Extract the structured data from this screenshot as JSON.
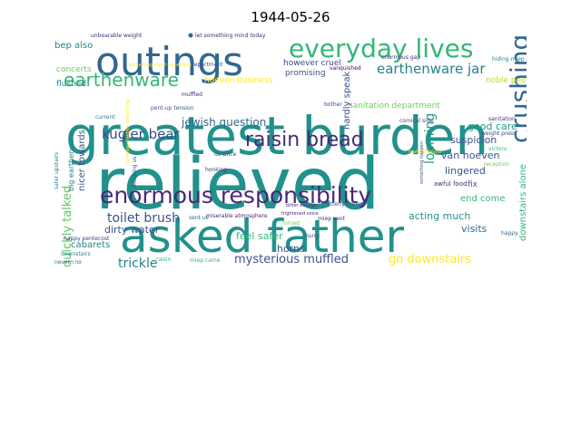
{
  "title": "1944-05-26",
  "chart_data": {
    "type": "wordcloud",
    "title": "1944-05-26",
    "words": [
      {
        "text": "relieved",
        "weight": 1.0,
        "color": "#21918c"
      },
      {
        "text": "greatest burden",
        "weight": 0.85,
        "color": "#21918c"
      },
      {
        "text": "asked father",
        "weight": 0.82,
        "color": "#21918c"
      },
      {
        "text": "outings",
        "weight": 0.68,
        "color": "#31688e"
      },
      {
        "text": "everyday lives",
        "weight": 0.46,
        "color": "#35b779"
      },
      {
        "text": "enormous responsibility",
        "weight": 0.44,
        "color": "#482878"
      },
      {
        "text": "crushing",
        "weight": 0.42,
        "color": "#31688e"
      },
      {
        "text": "raisin bread",
        "weight": 0.36,
        "color": "#482878"
      },
      {
        "text": "earthenware",
        "weight": 0.3,
        "color": "#35b779"
      },
      {
        "text": "earthenware jar",
        "weight": 0.24,
        "color": "#26828e"
      },
      {
        "text": "kugler bear",
        "weight": 0.22,
        "color": "#3e4989"
      },
      {
        "text": "quickly talked",
        "weight": 0.21,
        "color": "#5ec962"
      },
      {
        "text": "toilet brush",
        "weight": 0.21,
        "color": "#3b528b"
      },
      {
        "text": "looming",
        "weight": 0.21,
        "color": "#1f9e89"
      },
      {
        "text": "trickle",
        "weight": 0.2,
        "color": "#26828e"
      },
      {
        "text": "mysterious muffled",
        "weight": 0.19,
        "color": "#3b528b"
      },
      {
        "text": "go downstairs",
        "weight": 0.19,
        "color": "#fde725"
      },
      {
        "text": "jewish question",
        "weight": 0.17,
        "color": "#31688e"
      },
      {
        "text": "nicer towards",
        "weight": 0.14,
        "color": "#3b528b"
      },
      {
        "text": "hardly speak",
        "weight": 0.14,
        "color": "#3e4989"
      },
      {
        "text": "downstairs alone",
        "weight": 0.14,
        "color": "#35b779"
      },
      {
        "text": "good care",
        "weight": 0.15,
        "color": "#1f9e89"
      },
      {
        "text": "suspicion",
        "weight": 0.15,
        "color": "#3b528b"
      },
      {
        "text": "van hoeven",
        "weight": 0.14,
        "color": "#3b528b"
      },
      {
        "text": "lingered",
        "weight": 0.15,
        "color": "#3b528b"
      },
      {
        "text": "dirty water",
        "weight": 0.14,
        "color": "#3b528b"
      },
      {
        "text": "acting much",
        "weight": 0.14,
        "color": "#21918c"
      },
      {
        "text": "feel safer",
        "weight": 0.14,
        "color": "#35b779"
      },
      {
        "text": "horns",
        "weight": 0.13,
        "color": "#3b528b"
      },
      {
        "text": "visits",
        "weight": 0.13,
        "color": "#31688e"
      },
      {
        "text": "end come",
        "weight": 0.13,
        "color": "#35b779"
      },
      {
        "text": "cabarets",
        "weight": 0.13,
        "color": "#26828e"
      },
      {
        "text": "flushed",
        "weight": 0.13,
        "color": "#26828e"
      },
      {
        "text": "concerts",
        "weight": 0.13,
        "color": "#6ece58"
      },
      {
        "text": "bep also",
        "weight": 0.13,
        "color": "#26828e"
      },
      {
        "text": "promising",
        "weight": 0.13,
        "color": "#3b528b"
      },
      {
        "text": "noble people",
        "weight": 0.12,
        "color": "#b5de2b"
      },
      {
        "text": "however cruel",
        "weight": 0.12,
        "color": "#3e4989"
      },
      {
        "text": "sanitation department",
        "weight": 0.11,
        "color": "#6ece58"
      },
      {
        "text": "hoeven business",
        "weight": 0.11,
        "color": "#fde725"
      },
      {
        "text": "big earthenware",
        "weight": 0.1,
        "color": "#26828e"
      },
      {
        "text": "fix",
        "weight": 0.11,
        "color": "#3b528b"
      },
      {
        "text": "awful food",
        "weight": 0.09,
        "color": "#482878"
      },
      {
        "text": "let something mind today",
        "weight": 0.08,
        "color": "#482878"
      },
      {
        "text": "unbearable weight",
        "weight": 0.08,
        "color": "#472d7b"
      },
      {
        "text": "enormous gap",
        "weight": 0.08,
        "color": "#472d7b"
      },
      {
        "text": "vanquished",
        "weight": 0.08,
        "color": "#440154"
      },
      {
        "text": "hiding-miep",
        "weight": 0.07,
        "color": "#26828e"
      },
      {
        "text": "weight press",
        "weight": 0.07,
        "color": "#414487"
      },
      {
        "text": "victors",
        "weight": 0.07,
        "color": "#35b779"
      },
      {
        "text": "reception",
        "weight": 0.07,
        "color": "#6ece58"
      },
      {
        "text": "happy.",
        "weight": 0.07,
        "color": "#31688e"
      },
      {
        "text": "department",
        "weight": 0.07,
        "color": "#3e4989"
      },
      {
        "text": "something mind something",
        "weight": 0.06,
        "color": "#fde725"
      },
      {
        "text": "current",
        "weight": 0.07,
        "color": "#2a788e"
      },
      {
        "text": "muffled",
        "weight": 0.07,
        "color": "#482878"
      },
      {
        "text": "pent-up tension",
        "weight": 0.06,
        "color": "#3b528b"
      },
      {
        "text": "bother",
        "weight": 0.07,
        "color": "#3e4989"
      },
      {
        "text": "comical side",
        "weight": 0.07,
        "color": "#3e4989"
      },
      {
        "text": "muffled sound",
        "weight": 0.06,
        "color": "#fde725"
      },
      {
        "text": "sanitation",
        "weight": 0.07,
        "color": "#443983"
      },
      {
        "text": "something happen",
        "weight": 0.06,
        "color": "#3b528b"
      },
      {
        "text": "safer upstairs",
        "weight": 0.07,
        "color": "#26828e"
      },
      {
        "text": "us since",
        "weight": 0.07,
        "color": "#414487"
      },
      {
        "text": "honking",
        "weight": 0.06,
        "color": "#443983"
      },
      {
        "text": "mocking us",
        "weight": 0.06,
        "color": "#3b528b"
      },
      {
        "text": "sent us",
        "weight": 0.07,
        "color": "#31688e"
      },
      {
        "text": "miserable atmosphere",
        "weight": 0.06,
        "color": "#482878"
      },
      {
        "text": "frightened voice",
        "weight": 0.06,
        "color": "#482878"
      },
      {
        "text": "utterly broken",
        "weight": 0.06,
        "color": "#3e4989"
      },
      {
        "text": "forced",
        "weight": 0.07,
        "color": "#6ece58"
      },
      {
        "text": "miep sent",
        "weight": 0.06,
        "color": "#482878"
      },
      {
        "text": "bitter enough",
        "weight": 0.06,
        "color": "#482878"
      },
      {
        "text": "hurry",
        "weight": 0.06,
        "color": "#3e4989"
      },
      {
        "text": "happy pentecost",
        "weight": 0.06,
        "color": "#443983"
      },
      {
        "text": "downstairs",
        "weight": 0.06,
        "color": "#26828e"
      },
      {
        "text": "never...no",
        "weight": 0.06,
        "color": "#31688e"
      },
      {
        "text": "raisin",
        "weight": 0.07,
        "color": "#35b779"
      },
      {
        "text": "miep came",
        "weight": 0.07,
        "color": "#35b779"
      },
      {
        "text": "someday happen something",
        "weight": 0.05,
        "color": "#fde725"
      }
    ]
  }
}
